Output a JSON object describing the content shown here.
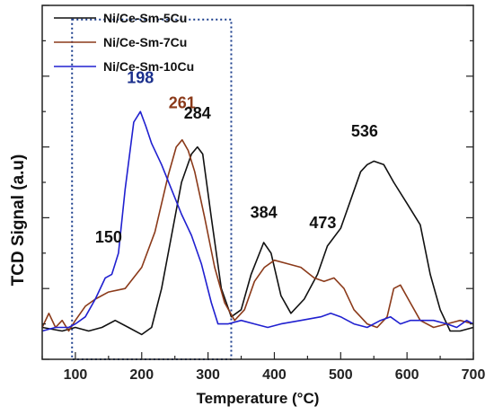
{
  "chart_data": {
    "type": "line",
    "title": "",
    "xlabel": "Temperature",
    "xlabel_unit": "(°C)",
    "ylabel": "TCD Signal (a.u)",
    "xlim": [
      50,
      700
    ],
    "ylim": [
      0,
      100
    ],
    "x_ticks": [
      100,
      200,
      300,
      400,
      500,
      600,
      700
    ],
    "grid": false,
    "legend_position": "top-left",
    "series": [
      {
        "name": "Ni/Ce-Sm-5Cu",
        "color": "#111111",
        "points": [
          [
            50,
            9
          ],
          [
            80,
            8
          ],
          [
            100,
            9
          ],
          [
            120,
            8
          ],
          [
            140,
            9
          ],
          [
            160,
            11
          ],
          [
            180,
            9
          ],
          [
            200,
            7
          ],
          [
            215,
            9
          ],
          [
            230,
            20
          ],
          [
            245,
            35
          ],
          [
            260,
            50
          ],
          [
            275,
            58
          ],
          [
            284,
            60
          ],
          [
            292,
            58
          ],
          [
            305,
            40
          ],
          [
            320,
            20
          ],
          [
            335,
            12
          ],
          [
            350,
            14
          ],
          [
            365,
            24
          ],
          [
            384,
            33
          ],
          [
            395,
            30
          ],
          [
            410,
            18
          ],
          [
            425,
            13
          ],
          [
            445,
            17
          ],
          [
            465,
            24
          ],
          [
            480,
            32
          ],
          [
            500,
            37
          ],
          [
            515,
            45
          ],
          [
            530,
            53
          ],
          [
            540,
            55
          ],
          [
            550,
            56
          ],
          [
            565,
            55
          ],
          [
            580,
            50
          ],
          [
            600,
            44
          ],
          [
            620,
            38
          ],
          [
            635,
            24
          ],
          [
            650,
            14
          ],
          [
            665,
            8
          ],
          [
            680,
            8
          ],
          [
            700,
            9
          ]
        ]
      },
      {
        "name": "Ni/Ce-Sm-7Cu",
        "color": "#8b3a1a",
        "points": [
          [
            50,
            9
          ],
          [
            60,
            13
          ],
          [
            70,
            9
          ],
          [
            80,
            11
          ],
          [
            90,
            8
          ],
          [
            100,
            11
          ],
          [
            115,
            15
          ],
          [
            130,
            17
          ],
          [
            150,
            19
          ],
          [
            175,
            20
          ],
          [
            200,
            26
          ],
          [
            220,
            36
          ],
          [
            240,
            52
          ],
          [
            252,
            60
          ],
          [
            261,
            62
          ],
          [
            270,
            59
          ],
          [
            280,
            53
          ],
          [
            295,
            40
          ],
          [
            310,
            26
          ],
          [
            325,
            16
          ],
          [
            340,
            11
          ],
          [
            355,
            14
          ],
          [
            370,
            22
          ],
          [
            385,
            26
          ],
          [
            400,
            28
          ],
          [
            420,
            27
          ],
          [
            440,
            26
          ],
          [
            460,
            23
          ],
          [
            475,
            22
          ],
          [
            490,
            23
          ],
          [
            505,
            20
          ],
          [
            520,
            14
          ],
          [
            540,
            10
          ],
          [
            555,
            9
          ],
          [
            570,
            12
          ],
          [
            580,
            20
          ],
          [
            590,
            21
          ],
          [
            605,
            16
          ],
          [
            620,
            11
          ],
          [
            640,
            9
          ],
          [
            660,
            10
          ],
          [
            680,
            11
          ],
          [
            700,
            10
          ]
        ]
      },
      {
        "name": "Ni/Ce-Sm-10Cu",
        "color": "#2020d0",
        "points": [
          [
            50,
            8
          ],
          [
            70,
            9
          ],
          [
            90,
            9
          ],
          [
            100,
            10
          ],
          [
            115,
            12
          ],
          [
            130,
            17
          ],
          [
            145,
            23
          ],
          [
            155,
            24
          ],
          [
            165,
            30
          ],
          [
            175,
            48
          ],
          [
            188,
            67
          ],
          [
            198,
            70
          ],
          [
            206,
            66
          ],
          [
            215,
            61
          ],
          [
            230,
            55
          ],
          [
            245,
            48
          ],
          [
            260,
            41
          ],
          [
            275,
            35
          ],
          [
            290,
            27
          ],
          [
            305,
            16
          ],
          [
            315,
            10
          ],
          [
            330,
            10
          ],
          [
            350,
            11
          ],
          [
            370,
            10
          ],
          [
            390,
            9
          ],
          [
            410,
            10
          ],
          [
            440,
            11
          ],
          [
            470,
            12
          ],
          [
            485,
            13
          ],
          [
            500,
            12
          ],
          [
            520,
            10
          ],
          [
            540,
            9
          ],
          [
            560,
            11
          ],
          [
            575,
            12
          ],
          [
            590,
            10
          ],
          [
            605,
            11
          ],
          [
            620,
            11
          ],
          [
            640,
            11
          ],
          [
            660,
            10
          ],
          [
            675,
            9
          ],
          [
            690,
            11
          ],
          [
            700,
            10
          ]
        ]
      }
    ],
    "annotations": [
      {
        "text": "150",
        "x": 150,
        "y": 33,
        "color": "#111111"
      },
      {
        "text": "198",
        "x": 198,
        "y": 78,
        "color": "#1a2f8c"
      },
      {
        "text": "261",
        "x": 261,
        "y": 71,
        "color": "#8b3a1a"
      },
      {
        "text": "284",
        "x": 284,
        "y": 68,
        "color": "#111111"
      },
      {
        "text": "384",
        "x": 384,
        "y": 40,
        "color": "#111111"
      },
      {
        "text": "473",
        "x": 473,
        "y": 37,
        "color": "#111111"
      },
      {
        "text": "536",
        "x": 536,
        "y": 63,
        "color": "#111111"
      }
    ],
    "highlight_region": {
      "x": [
        95,
        335
      ],
      "y": [
        0,
        96
      ],
      "style": "dotted",
      "color": "#1a3d8c"
    }
  }
}
